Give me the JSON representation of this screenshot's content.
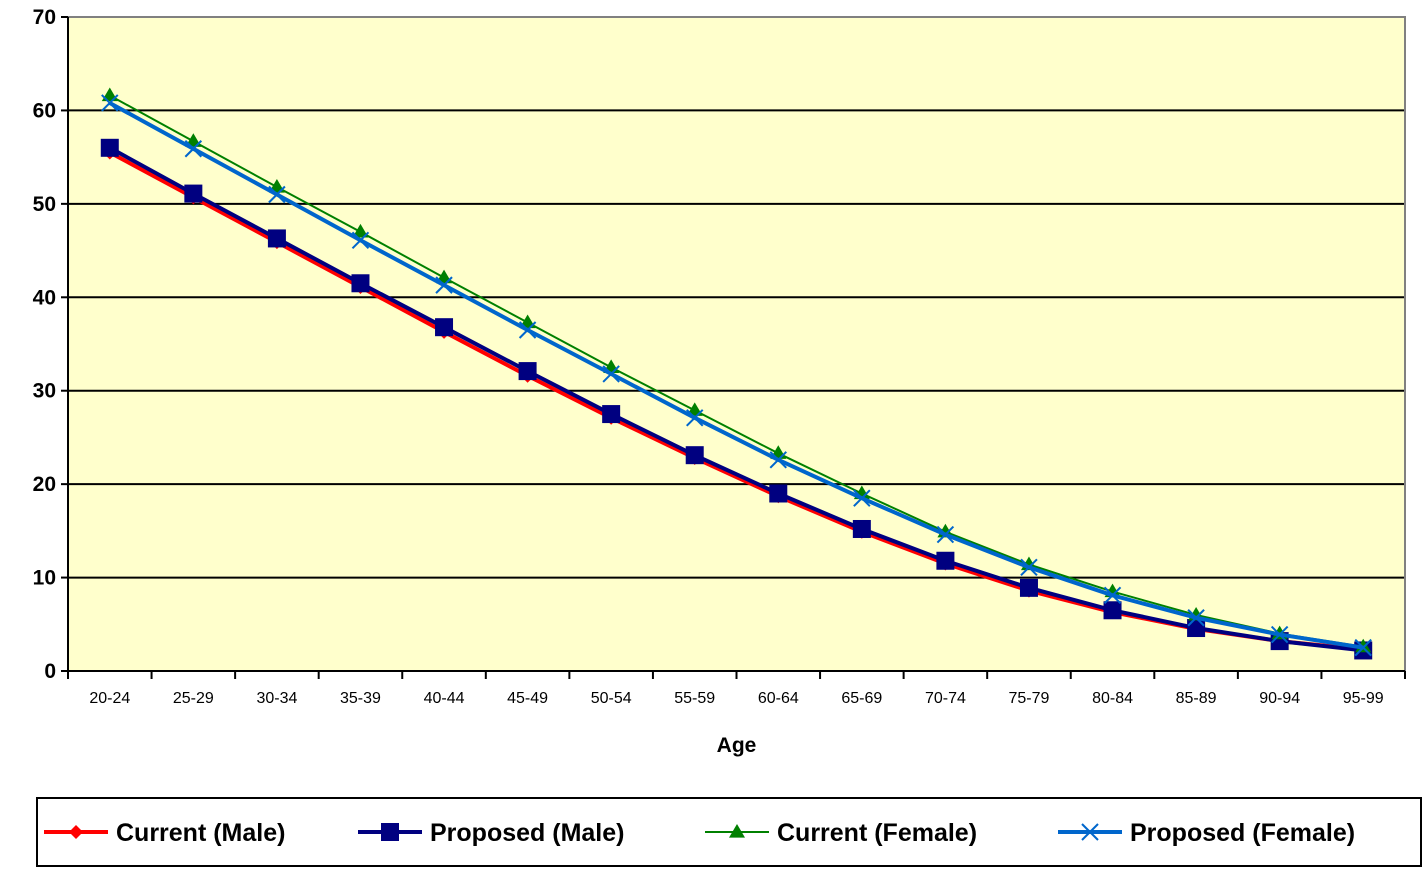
{
  "chart_data": {
    "type": "line",
    "title": "",
    "xlabel": "Age",
    "ylabel": "",
    "ylim": [
      0,
      70
    ],
    "yticks": [
      0,
      10,
      20,
      30,
      40,
      50,
      60,
      70
    ],
    "grid": true,
    "plot_background": "#FFFFCC",
    "legend_position": "bottom",
    "categories": [
      "20-24",
      "25-29",
      "30-34",
      "35-39",
      "40-44",
      "45-49",
      "50-54",
      "55-59",
      "60-64",
      "65-69",
      "70-74",
      "75-79",
      "80-84",
      "85-89",
      "90-94",
      "95-99"
    ],
    "series": [
      {
        "name": "Current (Male)",
        "color": "#FF0000",
        "marker": "diamond",
        "values": [
          55.5,
          50.7,
          45.9,
          41.1,
          36.3,
          31.6,
          27.1,
          22.8,
          18.7,
          14.9,
          11.5,
          8.6,
          6.3,
          4.5,
          3.2,
          2.3
        ]
      },
      {
        "name": "Proposed (Male)",
        "color": "#000080",
        "marker": "square",
        "values": [
          56.0,
          51.1,
          46.3,
          41.5,
          36.8,
          32.1,
          27.5,
          23.1,
          19.0,
          15.2,
          11.8,
          8.9,
          6.5,
          4.6,
          3.2,
          2.2
        ]
      },
      {
        "name": "Current (Female)",
        "color": "#008000",
        "marker": "triangle",
        "values": [
          61.6,
          56.7,
          51.8,
          47.0,
          42.1,
          37.3,
          32.5,
          27.9,
          23.3,
          19.0,
          14.9,
          11.4,
          8.5,
          6.0,
          4.0,
          2.6
        ]
      },
      {
        "name": "Proposed (Female)",
        "color": "#0066CC",
        "marker": "x",
        "values": [
          60.8,
          55.9,
          51.0,
          46.1,
          41.3,
          36.5,
          31.8,
          27.1,
          22.6,
          18.5,
          14.6,
          11.1,
          8.1,
          5.7,
          3.9,
          2.5
        ]
      }
    ]
  }
}
